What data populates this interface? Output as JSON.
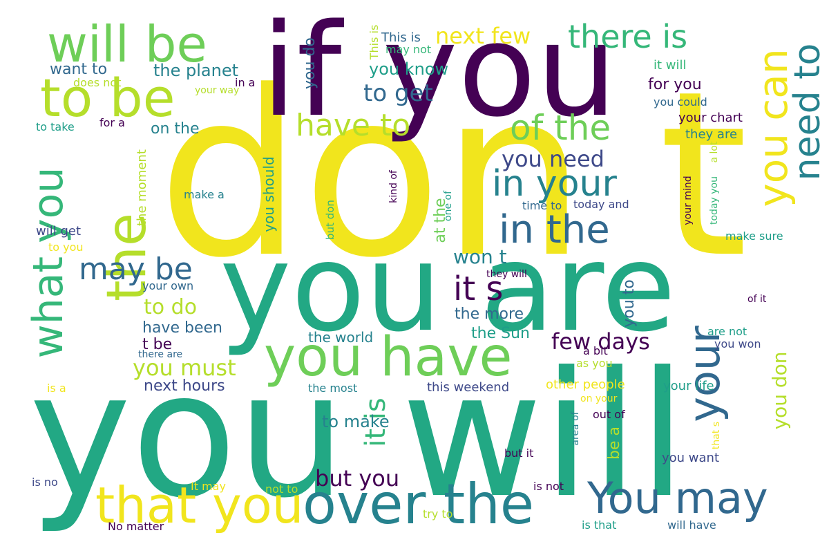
{
  "palette": {
    "yellow": "#f1e51d",
    "lime": "#b5de2b",
    "green": "#6ece58",
    "seafoam": "#35b779",
    "teal": "#22a884",
    "cyan": "#1f9e89",
    "steel": "#26828e",
    "blue": "#31688e",
    "indigo": "#3e4989",
    "purple": "#482878",
    "deep": "#440154"
  },
  "words": [
    "don t",
    "you will",
    "you are",
    "if you",
    "you have",
    "over the",
    "that you",
    "You may",
    "will be",
    "to be",
    "there is",
    "the",
    "what you",
    "your",
    "you can",
    "need to",
    "in your",
    "in the",
    "have to",
    "of the",
    "may be",
    "it s",
    "it is",
    "you don",
    "next few",
    "to get",
    "you know",
    "you do",
    "the planet",
    "want to",
    "for you",
    "it will",
    "This is",
    "may not",
    "does not",
    "your way",
    "in a",
    "you could",
    "your chart",
    "they are",
    "a lot",
    "to take",
    "for a",
    "on the",
    "the moment",
    "you should",
    "you need",
    "kind of",
    "but don",
    "one of",
    "at the",
    "make a",
    "time to",
    "today and",
    "your mind",
    "today you",
    "make sure",
    "will get",
    "to you",
    "won t",
    "they will",
    "your own",
    "to do",
    "the more",
    "you to",
    "of it",
    "have been",
    "t be",
    "few days",
    "the world",
    "the Sun",
    "are not",
    "you won",
    "there are",
    "a bit",
    "as you",
    "you must",
    "next hours",
    "is a",
    "the most",
    "this weekend",
    "other people",
    "your life",
    "on your",
    "out of",
    "to make",
    "area of",
    "be a",
    "that s",
    "but it",
    "you want",
    "but you",
    "is no",
    "It may",
    "not to",
    "is not",
    "try to",
    "No matter",
    "is that",
    "will have"
  ]
}
